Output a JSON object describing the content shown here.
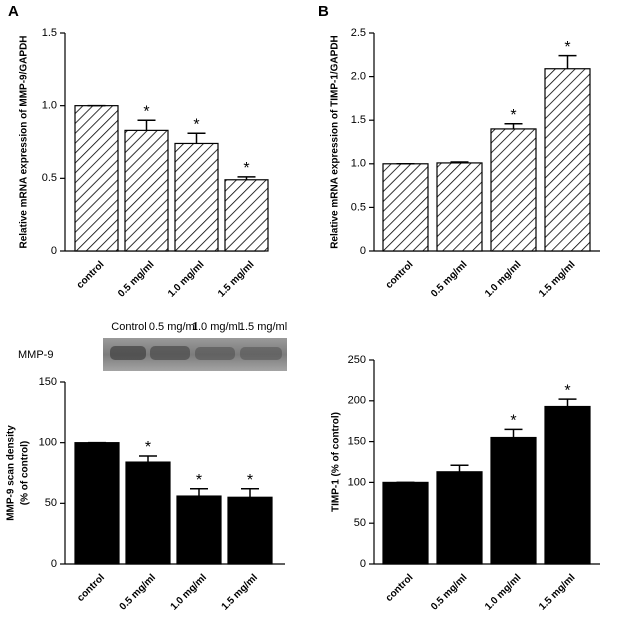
{
  "chart_data": [
    {
      "type": "bar",
      "panel": "A",
      "ylabel": [
        "Relative mRNA expression of MMP-9/GAPDH"
      ],
      "categories": [
        "control",
        "0.5 mg/ml",
        "1.0 mg/ml",
        "1.5 mg/ml"
      ],
      "values": [
        1.0,
        0.83,
        0.74,
        0.49
      ],
      "errors": [
        0,
        0.07,
        0.07,
        0.02
      ],
      "significance": [
        null,
        "*",
        "*",
        "*"
      ],
      "ylim": [
        0,
        1.5
      ],
      "yticks": [
        0,
        0.5,
        {
          "value": 1,
          "label": "1.0"
        },
        1.5
      ],
      "pattern": "hatch",
      "color": "#000000"
    },
    {
      "type": "bar",
      "panel": "B",
      "ylabel": [
        "Relative mRNA expression of TIMP-1/GAPDH"
      ],
      "categories": [
        "control",
        "0.5 mg/ml",
        "1.0 mg/ml",
        "1.5 mg/ml"
      ],
      "values": [
        1.0,
        1.01,
        1.4,
        2.09
      ],
      "errors": [
        0,
        0.01,
        0.06,
        0.15
      ],
      "significance": [
        null,
        null,
        "*",
        "*"
      ],
      "ylim": [
        0,
        2.5
      ],
      "yticks": [
        0,
        0.5,
        {
          "value": 1,
          "label": "1.0"
        },
        1.5,
        {
          "value": 2,
          "label": "2.0"
        },
        2.5
      ],
      "pattern": "hatch",
      "color": "#000000"
    },
    {
      "type": "bar",
      "ylabel": [
        "MMP-9 scan density",
        "(% of control)"
      ],
      "gel": {
        "lanes": [
          "Control",
          "0.5 mg/ml",
          "1.0 mg/ml",
          "1.5 mg/ml"
        ],
        "label": "MMP-9"
      },
      "categories": [
        "control",
        "0.5 mg/ml",
        "1.0 mg/ml",
        "1.5 mg/ml"
      ],
      "values": [
        100,
        84,
        56,
        55
      ],
      "errors": [
        0,
        5,
        6,
        7
      ],
      "significance": [
        null,
        "*",
        "*",
        "*"
      ],
      "ylim": [
        0,
        150
      ],
      "yticks": [
        0,
        50,
        100,
        150
      ],
      "pattern": "solid",
      "color": "#000000"
    },
    {
      "type": "bar",
      "ylabel": [
        "TIMP-1 (% of control)"
      ],
      "categories": [
        "control",
        "0.5 mg/ml",
        "1.0 mg/ml",
        "1.5 mg/ml"
      ],
      "values": [
        100,
        113,
        155,
        193
      ],
      "errors": [
        0,
        8,
        10,
        9
      ],
      "significance": [
        null,
        null,
        "*",
        "*"
      ],
      "ylim": [
        0,
        250
      ],
      "yticks": [
        0,
        50,
        100,
        150,
        200,
        250
      ],
      "pattern": "solid",
      "color": "#000000"
    }
  ]
}
